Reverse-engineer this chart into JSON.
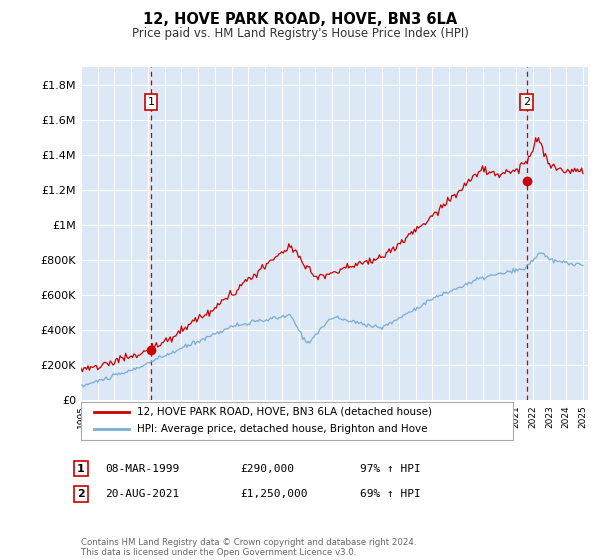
{
  "title": "12, HOVE PARK ROAD, HOVE, BN3 6LA",
  "subtitle": "Price paid vs. HM Land Registry's House Price Index (HPI)",
  "ylim": [
    0,
    1900000
  ],
  "yticks": [
    0,
    200000,
    400000,
    600000,
    800000,
    1000000,
    1200000,
    1400000,
    1600000,
    1800000
  ],
  "ytick_labels": [
    "£0",
    "£200K",
    "£400K",
    "£600K",
    "£800K",
    "£1M",
    "£1.2M",
    "£1.4M",
    "£1.6M",
    "£1.8M"
  ],
  "bg_color": "#ffffff",
  "plot_bg_color": "#dce8f5",
  "grid_color": "#ffffff",
  "line_color_red": "#cc0000",
  "line_color_blue": "#7aadd4",
  "transaction1": {
    "date": "08-MAR-1999",
    "price": 290000,
    "label": "1",
    "pct": "97% ↑ HPI",
    "x": 1999.18
  },
  "transaction2": {
    "date": "20-AUG-2021",
    "price": 1250000,
    "label": "2",
    "pct": "69% ↑ HPI",
    "x": 2021.63
  },
  "legend_red": "12, HOVE PARK ROAD, HOVE, BN3 6LA (detached house)",
  "legend_blue": "HPI: Average price, detached house, Brighton and Hove",
  "footnote": "Contains HM Land Registry data © Crown copyright and database right 2024.\nThis data is licensed under the Open Government Licence v3.0.",
  "table_rows": [
    {
      "num": "1",
      "date": "08-MAR-1999",
      "price": "£290,000",
      "pct": "97% ↑ HPI"
    },
    {
      "num": "2",
      "date": "20-AUG-2021",
      "price": "£1,250,000",
      "pct": "69% ↑ HPI"
    }
  ]
}
